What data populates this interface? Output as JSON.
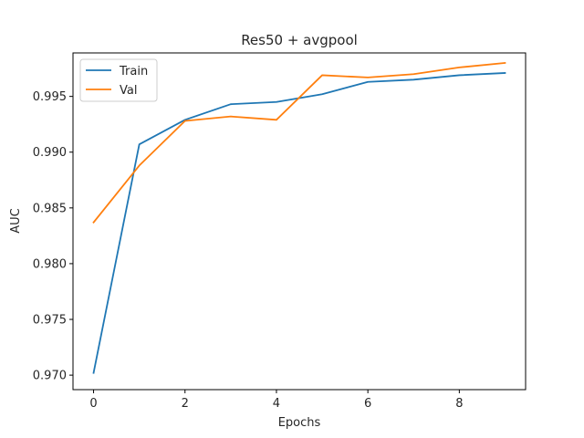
{
  "chart_data": {
    "type": "line",
    "title": "Res50 + avgpool",
    "xlabel": "Epochs",
    "ylabel": "AUC",
    "xlim": [
      -0.45,
      9.45
    ],
    "ylim": [
      0.9687,
      0.9989
    ],
    "xticks": [
      0,
      2,
      4,
      6,
      8
    ],
    "xtick_labels": [
      "0",
      "2",
      "4",
      "6",
      "8"
    ],
    "yticks": [
      0.97,
      0.975,
      0.98,
      0.985,
      0.99,
      0.995
    ],
    "ytick_labels": [
      "0.970",
      "0.975",
      "0.980",
      "0.985",
      "0.990",
      "0.995"
    ],
    "grid": false,
    "legend_position": "top-left",
    "x": [
      0,
      1,
      2,
      3,
      4,
      5,
      6,
      7,
      8,
      9
    ],
    "series": [
      {
        "name": "Train",
        "color": "#1f77b4",
        "values": [
          0.9702,
          0.9907,
          0.9929,
          0.9943,
          0.9945,
          0.9952,
          0.9963,
          0.9965,
          0.9969,
          0.9971
        ]
      },
      {
        "name": "Val",
        "color": "#ff7f0e",
        "values": [
          0.9837,
          0.9888,
          0.9928,
          0.9932,
          0.9929,
          0.9969,
          0.9967,
          0.997,
          0.9976,
          0.998
        ]
      }
    ]
  }
}
